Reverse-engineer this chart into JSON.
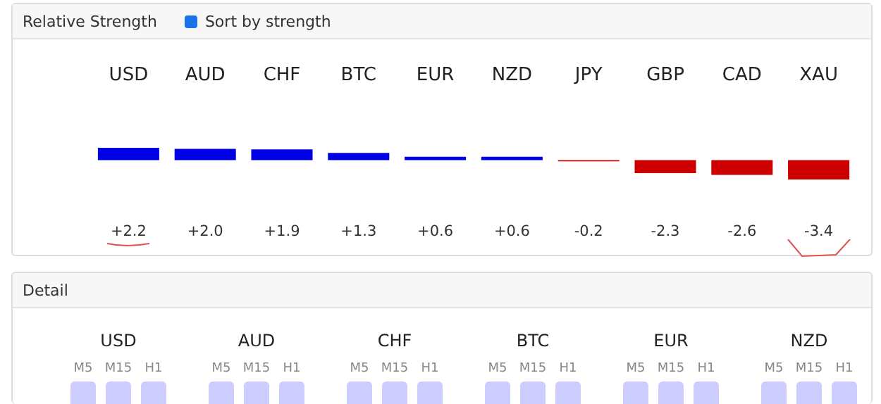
{
  "chart_data": [
    {
      "type": "bar",
      "title": "Relative Strength",
      "annotations": [
        "Sort by strength"
      ],
      "categories": [
        "USD",
        "AUD",
        "CHF",
        "BTC",
        "EUR",
        "NZD",
        "JPY",
        "GBP",
        "CAD",
        "XAU"
      ],
      "values": [
        2.2,
        2.0,
        1.9,
        1.3,
        0.6,
        0.6,
        -0.2,
        -2.3,
        -2.6,
        -3.4
      ],
      "colors": [
        "#0000e6",
        "#0000e6",
        "#0000e6",
        "#0000e6",
        "#0000e6",
        "#0000e6",
        "#cc0000",
        "#cc0000",
        "#cc0000",
        "#cc0000"
      ],
      "value_labels": [
        "+2.2",
        "+2.0",
        "+1.9",
        "+1.3",
        "+0.6",
        "+0.6",
        "-0.2",
        "-2.3",
        "-2.6",
        "-3.4"
      ],
      "grid": false,
      "legend": false
    },
    {
      "type": "other",
      "title": "Detail",
      "categories": [
        "USD",
        "AUD",
        "CHF",
        "BTC",
        "EUR",
        "NZD"
      ],
      "annotations": [
        "M5",
        "M15",
        "H1"
      ]
    }
  ]
}
